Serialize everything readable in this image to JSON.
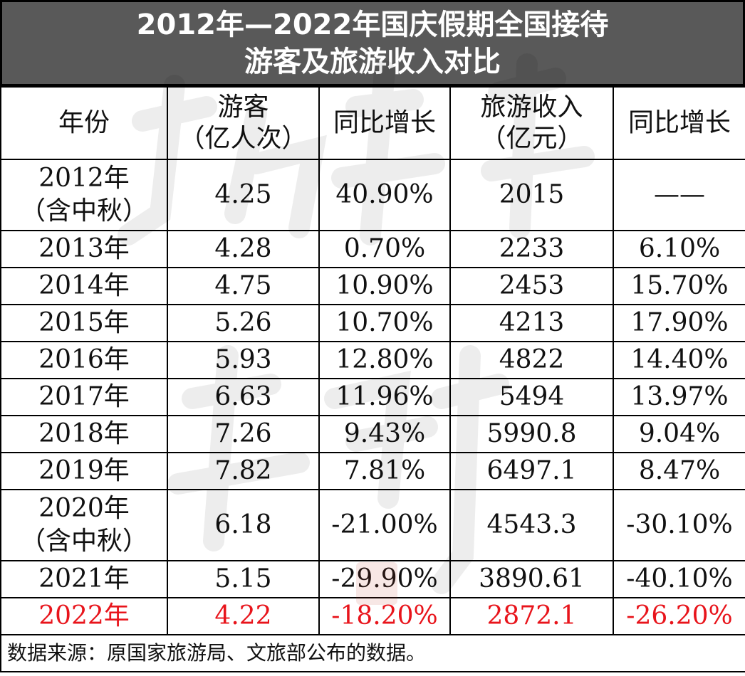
{
  "title": {
    "line1": "2012年—2022年国庆假期全国接待",
    "line2": "游客及旅游收入对比"
  },
  "header": {
    "year": "年份",
    "tourists_line1": "游客",
    "tourists_line2": "（亿人次）",
    "tourists_growth": "同比增长",
    "revenue_line1": "旅游收入",
    "revenue_line2": "（亿元）",
    "revenue_growth": "同比增长"
  },
  "rows": [
    {
      "year": "2012年",
      "note": "（含中秋）",
      "tourists": "4.25",
      "tourists_growth": "40.90%",
      "revenue": "2015",
      "revenue_growth": "——"
    },
    {
      "year": "2013年",
      "tourists": "4.28",
      "tourists_growth": "0.70%",
      "revenue": "2233",
      "revenue_growth": "6.10%"
    },
    {
      "year": "2014年",
      "tourists": "4.75",
      "tourists_growth": "10.90%",
      "revenue": "2453",
      "revenue_growth": "15.70%"
    },
    {
      "year": "2015年",
      "tourists": "5.26",
      "tourists_growth": "10.70%",
      "revenue": "4213",
      "revenue_growth": "17.90%"
    },
    {
      "year": "2016年",
      "tourists": "5.93",
      "tourists_growth": "12.80%",
      "revenue": "4822",
      "revenue_growth": "14.40%"
    },
    {
      "year": "2017年",
      "tourists": "6.63",
      "tourists_growth": "11.96%",
      "revenue": "5494",
      "revenue_growth": "13.97%"
    },
    {
      "year": "2018年",
      "tourists": "7.26",
      "tourists_growth": "9.43%",
      "revenue": "5990.8",
      "revenue_growth": "9.04%"
    },
    {
      "year": "2019年",
      "tourists": "7.82",
      "tourists_growth": "7.81%",
      "revenue": "6497.1",
      "revenue_growth": "8.47%"
    },
    {
      "year": "2020年",
      "note": "（含中秋）",
      "tourists": "6.18",
      "tourists_growth": "-21.00%",
      "revenue": "4543.3",
      "revenue_growth": "-30.10%"
    },
    {
      "year": "2021年",
      "tourists": "5.15",
      "tourists_growth": "-29.90%",
      "revenue": "3890.61",
      "revenue_growth": "-40.10%"
    },
    {
      "year": "2022年",
      "tourists": "4.22",
      "tourists_growth": "-18.20%",
      "revenue": "2872.1",
      "revenue_growth": "-26.20%"
    }
  ],
  "source": "数据来源：原国家旅游局、文旅部公布的数据。",
  "colors": {
    "title_bg": "#595959",
    "title_text": "#ffffff",
    "highlight_row": "#e8141b",
    "border": "#000000"
  },
  "chart_data": {
    "type": "table",
    "title": "2012年—2022年国庆假期全国接待游客及旅游收入对比",
    "columns": [
      "年份",
      "游客（亿人次）",
      "同比增长",
      "旅游收入（亿元）",
      "同比增长"
    ],
    "rows": [
      [
        "2012年（含中秋）",
        4.25,
        "40.90%",
        2015,
        "——"
      ],
      [
        "2013年",
        4.28,
        "0.70%",
        2233,
        "6.10%"
      ],
      [
        "2014年",
        4.75,
        "10.90%",
        2453,
        "15.70%"
      ],
      [
        "2015年",
        5.26,
        "10.70%",
        4213,
        "17.90%"
      ],
      [
        "2016年",
        5.93,
        "12.80%",
        4822,
        "14.40%"
      ],
      [
        "2017年",
        6.63,
        "11.96%",
        5494,
        "13.97%"
      ],
      [
        "2018年",
        7.26,
        "9.43%",
        5990.8,
        "9.04%"
      ],
      [
        "2019年",
        7.82,
        "7.81%",
        6497.1,
        "8.47%"
      ],
      [
        "2020年（含中秋）",
        6.18,
        "-21.00%",
        4543.3,
        "-30.10%"
      ],
      [
        "2021年",
        5.15,
        "-29.90%",
        3890.61,
        "-40.10%"
      ],
      [
        "2022年",
        4.22,
        "-18.20%",
        2872.1,
        "-26.20%"
      ]
    ]
  }
}
